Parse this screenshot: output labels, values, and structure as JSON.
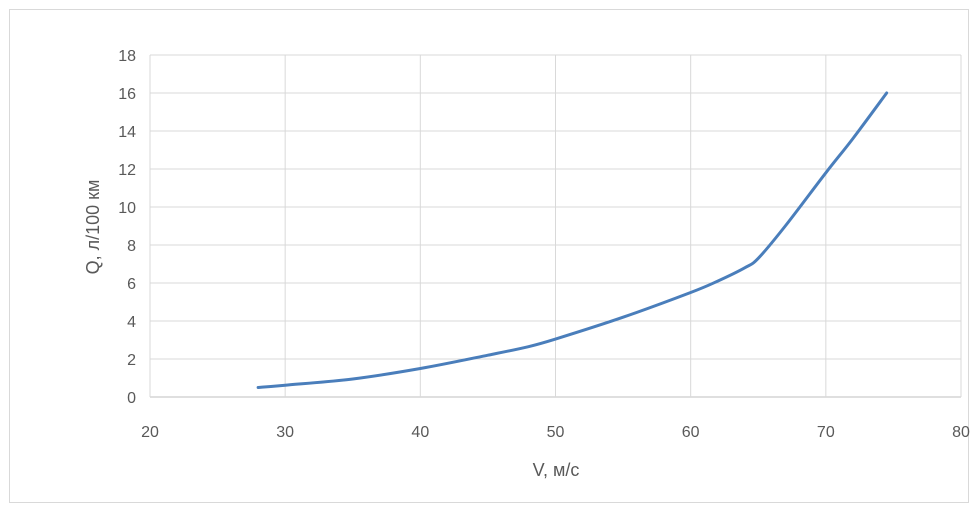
{
  "chart_data": {
    "type": "line",
    "title": "",
    "xlabel": "V, м/с",
    "ylabel": "Q, л/100 км",
    "xlim": [
      20,
      80
    ],
    "ylim": [
      0,
      18
    ],
    "x_ticks": [
      "20",
      "30",
      "40",
      "50",
      "60",
      "70",
      "80"
    ],
    "y_ticks": [
      "0",
      "2",
      "4",
      "6",
      "8",
      "10",
      "12",
      "14",
      "16",
      "18"
    ],
    "grid": true,
    "legend": "none",
    "series": [
      {
        "color": "#4a7ebb",
        "x": [
          28,
          30,
          35,
          40,
          45,
          48,
          50,
          55,
          60,
          62,
          64,
          65,
          67,
          70,
          72,
          74.5
        ],
        "y": [
          0.5,
          0.62,
          0.95,
          1.5,
          2.2,
          2.65,
          3.05,
          4.2,
          5.5,
          6.1,
          6.8,
          7.3,
          9.0,
          11.8,
          13.6,
          16.0
        ]
      }
    ]
  }
}
